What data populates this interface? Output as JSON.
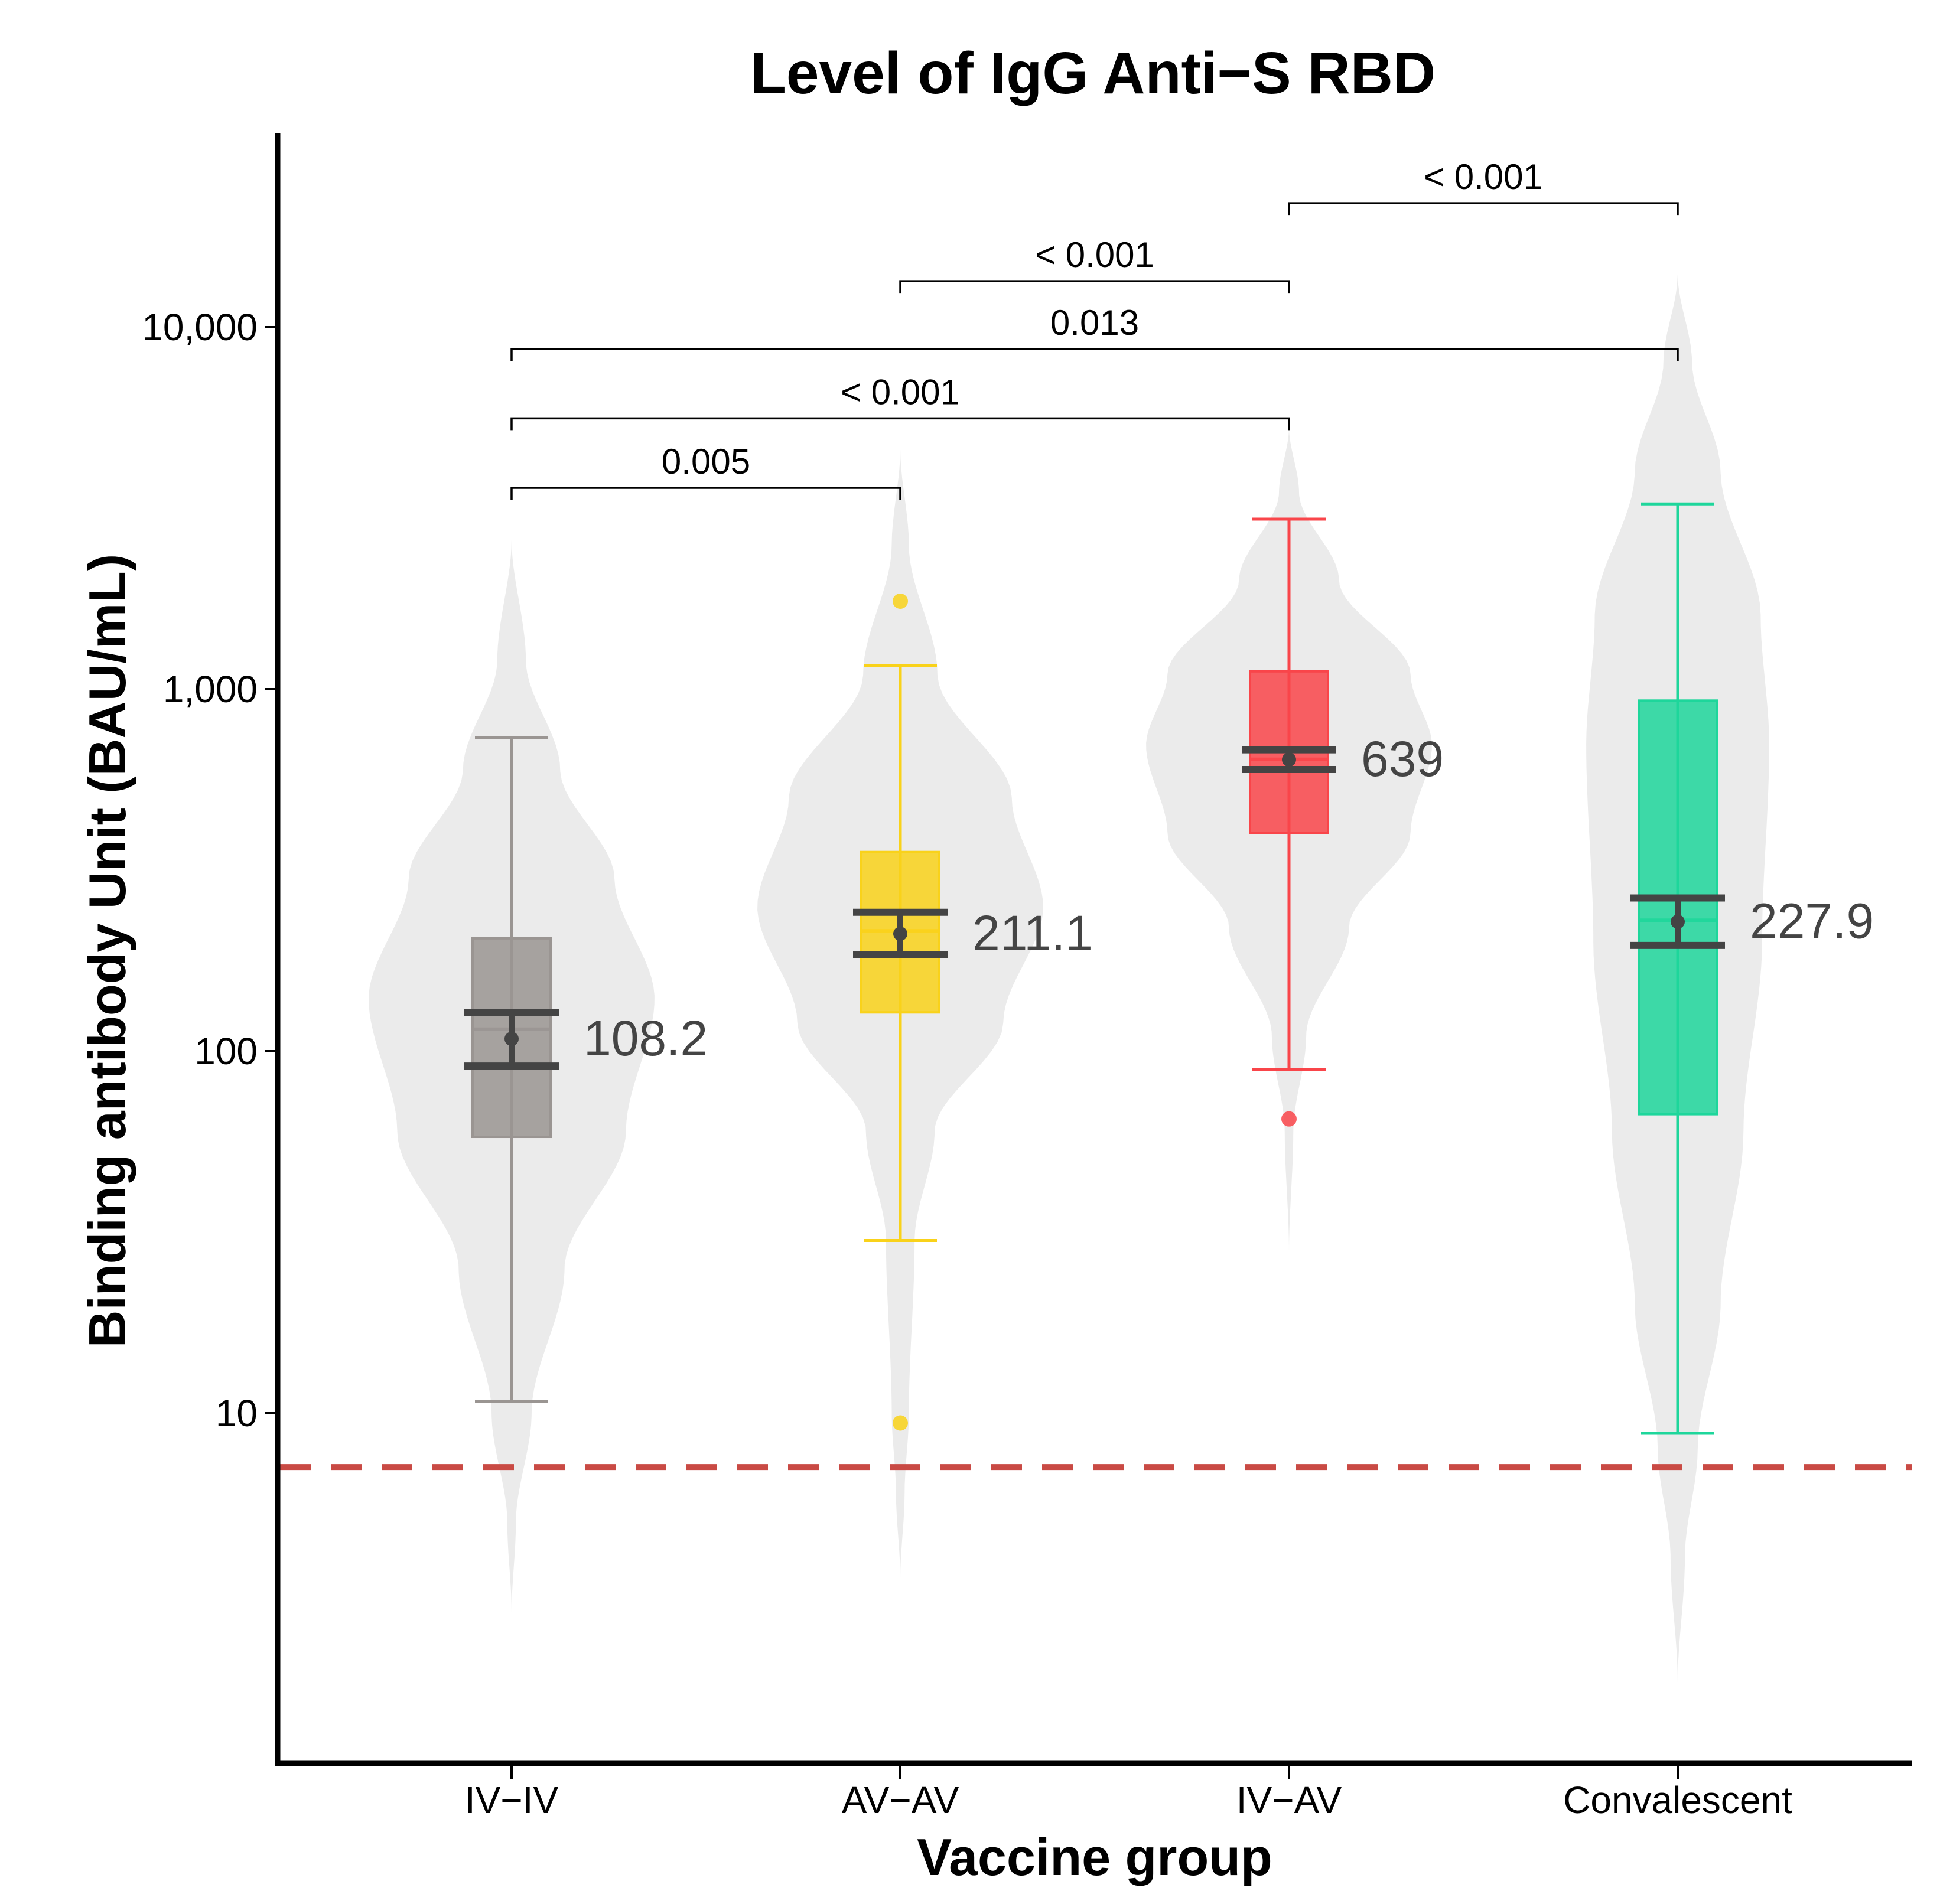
{
  "chart_data": {
    "type": "violin-box",
    "title": "Level of IgG Anti−S RBD",
    "xlabel": "Vaccine group",
    "ylabel": "Binding antibody Unit (BAU/mL)",
    "yscale": "log10",
    "ylim": [
      1.4,
      30000
    ],
    "yticks": [
      10,
      100,
      1000,
      10000
    ],
    "ytick_labels": [
      "10",
      "100",
      "1,000",
      "10,000"
    ],
    "threshold_line": {
      "value": 7.1,
      "color": "#c94a44",
      "style": "dashed"
    },
    "groups": [
      {
        "name": "IV−IV",
        "color": "#9a9592",
        "whisker_low": 10.8,
        "q1": 58,
        "median": 115,
        "q3": 205,
        "whisker_high": 735,
        "gmt": 108.2,
        "gmt_label": "108.2",
        "ci_low": 91,
        "ci_high": 128,
        "outliers": [],
        "violin": {
          "min": 2.8,
          "max": 2600,
          "profile": [
            [
              2.8,
              0
            ],
            [
              5,
              0.03
            ],
            [
              10,
              0.14
            ],
            [
              25,
              0.37
            ],
            [
              60,
              0.8
            ],
            [
              140,
              1.0
            ],
            [
              300,
              0.72
            ],
            [
              600,
              0.34
            ],
            [
              1200,
              0.1
            ],
            [
              2600,
              0
            ]
          ]
        }
      },
      {
        "name": "AV−AV",
        "color": "#f9d21a",
        "whisker_low": 30,
        "q1": 128,
        "median": 215,
        "q3": 355,
        "whisker_high": 1160,
        "gmt": 211.1,
        "gmt_label": "211.1",
        "ci_low": 185,
        "ci_high": 242,
        "outliers": [
          1750,
          9.4
        ],
        "violin": {
          "min": 3.5,
          "max": 4600,
          "profile": [
            [
              3.5,
              0
            ],
            [
              6,
              0.03
            ],
            [
              10,
              0.06
            ],
            [
              30,
              0.1
            ],
            [
              60,
              0.24
            ],
            [
              120,
              0.72
            ],
            [
              250,
              1.0
            ],
            [
              500,
              0.78
            ],
            [
              1100,
              0.26
            ],
            [
              2500,
              0.06
            ],
            [
              4600,
              0
            ]
          ]
        }
      },
      {
        "name": "IV−AV",
        "color": "#f9454a",
        "whisker_low": 89,
        "q1": 400,
        "median": 640,
        "q3": 1120,
        "whisker_high": 2950,
        "gmt": 639,
        "gmt_label": "639",
        "ci_low": 600,
        "ci_high": 680,
        "outliers": [
          65
        ],
        "violin": {
          "min": 28,
          "max": 5300,
          "profile": [
            [
              28,
              0
            ],
            [
              60,
              0.03
            ],
            [
              110,
              0.12
            ],
            [
              220,
              0.42
            ],
            [
              400,
              0.85
            ],
            [
              700,
              1.0
            ],
            [
              1100,
              0.85
            ],
            [
              2000,
              0.35
            ],
            [
              3500,
              0.07
            ],
            [
              5300,
              0
            ]
          ]
        }
      },
      {
        "name": "Convalescent",
        "color": "#1ed69b",
        "whisker_low": 8.8,
        "q1": 67,
        "median": 230,
        "q3": 930,
        "whisker_high": 3250,
        "gmt": 227.9,
        "gmt_label": "227.9",
        "ci_low": 196,
        "ci_high": 265,
        "outliers": [],
        "violin": {
          "min": 1.8,
          "max": 14000,
          "profile": [
            [
              1.8,
              0
            ],
            [
              4,
              0.05
            ],
            [
              8,
              0.14
            ],
            [
              20,
              0.3
            ],
            [
              60,
              0.46
            ],
            [
              200,
              0.59
            ],
            [
              700,
              0.64
            ],
            [
              1600,
              0.58
            ],
            [
              4000,
              0.3
            ],
            [
              8000,
              0.1
            ],
            [
              14000,
              0
            ]
          ]
        }
      }
    ],
    "comparisons": [
      {
        "from": 1,
        "to": 2,
        "label": "0.005",
        "bracket_value": 3600
      },
      {
        "from": 1,
        "to": 3,
        "label": "< 0.001",
        "bracket_value": 5600
      },
      {
        "from": 1,
        "to": 4,
        "label": "0.013",
        "bracket_value": 8700
      },
      {
        "from": 2,
        "to": 3,
        "label": "< 0.001",
        "bracket_value": 13400
      },
      {
        "from": 3,
        "to": 4,
        "label": "< 0.001",
        "bracket_value": 22000
      }
    ],
    "legend": "none",
    "grid": false
  }
}
